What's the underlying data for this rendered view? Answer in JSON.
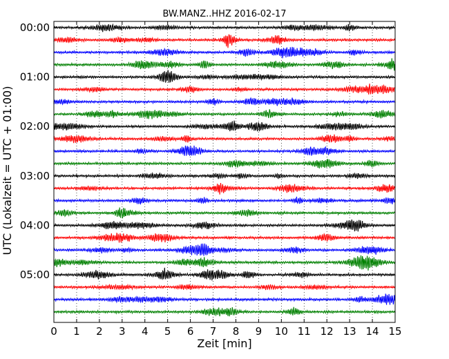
{
  "chart_data": {
    "type": "line",
    "title": "BW.MANZ..HHZ 2016-02-17",
    "xlabel": "Zeit  [min]",
    "ylabel": "UTC (Lokalzeit = UTC + 01:00)",
    "xlim": [
      0,
      15
    ],
    "x_ticks": [
      "0",
      "1",
      "2",
      "3",
      "4",
      "5",
      "6",
      "7",
      "8",
      "9",
      "10",
      "11",
      "12",
      "13",
      "14",
      "15"
    ],
    "y_ticks": [
      "00:00",
      "01:00",
      "02:00",
      "03:00",
      "04:00",
      "05:00"
    ],
    "rows_per_hour": 4,
    "row_count": 24,
    "vertical_grid": "dotted",
    "colors": [
      "#000000",
      "#ff0000",
      "#0000ff",
      "#008000"
    ]
  }
}
